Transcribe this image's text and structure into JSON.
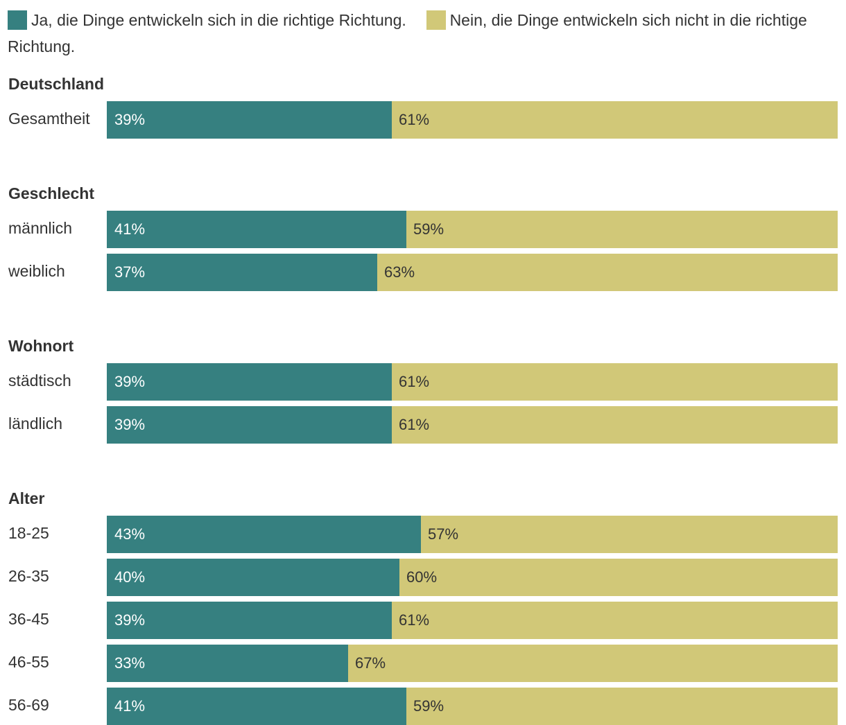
{
  "legend": {
    "yes_label": "Ja, die Dinge entwickeln sich in die richtige Richtung.",
    "no_label": "Nein, die Dinge entwickeln sich nicht in die richtige Richtung."
  },
  "colors": {
    "yes": "#368080",
    "no": "#d1c878"
  },
  "chart_data": {
    "type": "bar",
    "orientation": "horizontal",
    "stacked": true,
    "percent_stacked": true,
    "series": [
      {
        "name": "Ja, die Dinge entwickeln sich in die richtige Richtung.",
        "color": "#368080"
      },
      {
        "name": "Nein, die Dinge entwickeln sich nicht in die richtige Richtung.",
        "color": "#d1c878"
      }
    ],
    "xlim": [
      0,
      100
    ],
    "groups": [
      {
        "title": "Deutschland",
        "rows": [
          {
            "label": "Gesamtheit",
            "yes": 39,
            "no": 61,
            "yes_text": "39%",
            "no_text": "61%"
          }
        ]
      },
      {
        "title": "Geschlecht",
        "rows": [
          {
            "label": "männlich",
            "yes": 41,
            "no": 59,
            "yes_text": "41%",
            "no_text": "59%"
          },
          {
            "label": "weiblich",
            "yes": 37,
            "no": 63,
            "yes_text": "37%",
            "no_text": "63%"
          }
        ]
      },
      {
        "title": "Wohnort",
        "rows": [
          {
            "label": "städtisch",
            "yes": 39,
            "no": 61,
            "yes_text": "39%",
            "no_text": "61%"
          },
          {
            "label": "ländlich",
            "yes": 39,
            "no": 61,
            "yes_text": "39%",
            "no_text": "61%"
          }
        ]
      },
      {
        "title": "Alter",
        "rows": [
          {
            "label": "18-25",
            "yes": 43,
            "no": 57,
            "yes_text": "43%",
            "no_text": "57%"
          },
          {
            "label": "26-35",
            "yes": 40,
            "no": 60,
            "yes_text": "40%",
            "no_text": "60%"
          },
          {
            "label": "36-45",
            "yes": 39,
            "no": 61,
            "yes_text": "39%",
            "no_text": "61%"
          },
          {
            "label": "46-55",
            "yes": 33,
            "no": 67,
            "yes_text": "33%",
            "no_text": "67%"
          },
          {
            "label": "56-69",
            "yes": 41,
            "no": 59,
            "yes_text": "41%",
            "no_text": "59%"
          }
        ]
      }
    ]
  }
}
